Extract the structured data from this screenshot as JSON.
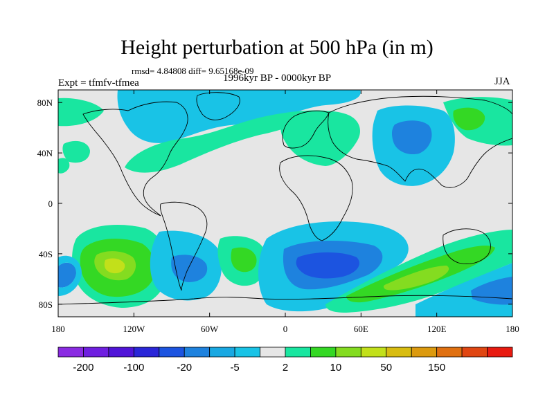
{
  "title": "Height perturbation at 500 hPa (in m)",
  "stats": "rmsd= 4.84808 diff= 9.65168e-09",
  "period": "1996kyr BP - 0000kyr BP",
  "experiment": "Expt = tfmfv-tfmea",
  "season": "JJA",
  "map": {
    "lon_range": [
      -180,
      180
    ],
    "lat_range": [
      -90,
      90
    ],
    "lon_ticks": [
      {
        "value": -180,
        "label": "180"
      },
      {
        "value": -120,
        "label": "120W"
      },
      {
        "value": -60,
        "label": "60W"
      },
      {
        "value": 0,
        "label": "0"
      },
      {
        "value": 60,
        "label": "60E"
      },
      {
        "value": 120,
        "label": "120E"
      },
      {
        "value": 180,
        "label": "180"
      }
    ],
    "lat_ticks": [
      {
        "value": 80,
        "label": "80N"
      },
      {
        "value": 40,
        "label": "40N"
      },
      {
        "value": 0,
        "label": "0"
      },
      {
        "value": -40,
        "label": "40S"
      },
      {
        "value": -80,
        "label": "80S"
      }
    ]
  },
  "colorbar": {
    "colors": [
      "#8a2be2",
      "#6f1fe0",
      "#5014d8",
      "#2a26d8",
      "#1c54e0",
      "#1e82de",
      "#19a8e2",
      "#19c3e6",
      "#e6e6e6",
      "#19e6a0",
      "#34d824",
      "#84dc20",
      "#c2e01a",
      "#d8bc10",
      "#dc9a0e",
      "#e07010",
      "#e04612",
      "#e81a10"
    ],
    "labels": [
      {
        "index": 1,
        "label": "-200"
      },
      {
        "index": 3,
        "label": "-100"
      },
      {
        "index": 5,
        "label": "-20"
      },
      {
        "index": 7,
        "label": "-5"
      },
      {
        "index": 9,
        "label": "2"
      },
      {
        "index": 11,
        "label": "10"
      },
      {
        "index": 13,
        "label": "50"
      },
      {
        "index": 15,
        "label": "150"
      }
    ]
  },
  "field_colors": {
    "background": "#e6e6e6",
    "neg1": "#19c3e6",
    "neg2": "#1e82de",
    "neg3": "#1c54e0",
    "pos1": "#19e6a0",
    "pos2": "#34d824",
    "pos3": "#84dc20",
    "pos4": "#c2e01a"
  }
}
